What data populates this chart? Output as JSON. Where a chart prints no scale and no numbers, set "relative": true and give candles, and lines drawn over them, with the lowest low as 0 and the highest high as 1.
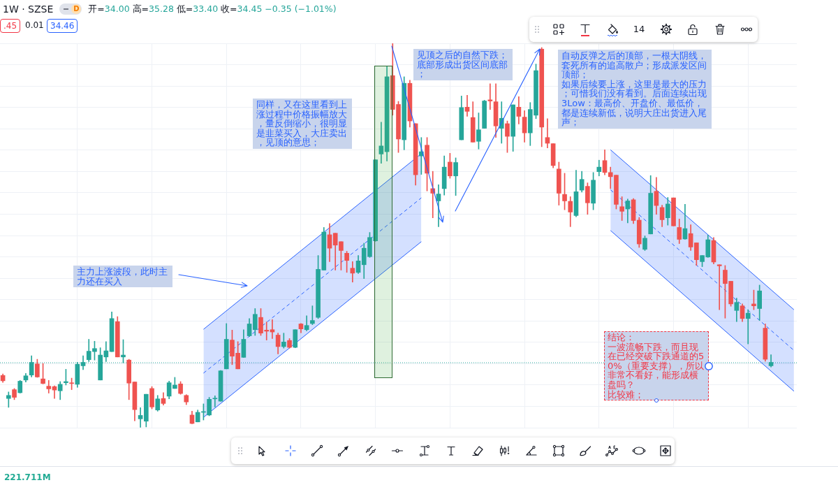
{
  "chart_data": {
    "type": "candlestick",
    "title": "1W · SZSE",
    "relative": true,
    "tick_labels": false,
    "grid": true,
    "annotations": [
      "开=34.00 高=35.28 低=33.40 收=34.45 −0.35 (−1.01%)",
      "D",
      ".45",
      "0.01",
      "34.46",
      "14",
      "221.711M",
      "主力上涨波段，此时主力还在买入",
      "同样，又在这里看到上涨过程中价格振幅放大，量反倒缩小，很明显是韭菜买入，大庄卖出，见顶的意思；",
      "见顶之后的自然下跌；底部形成出货区间底部；",
      "自动反弹之后的顶部，一根大阴线，套死所有的追高散户；形成派发区间顶部；",
      "如果后续要上涨，这里是最大的压力；可惜我们没有看到。后面连续出现3Low：最高价、开盘价、最低价，",
      "都是连续新低，说明大庄出货进入尾声；",
      "结论：",
      "一波流畅下跌，而且现在已经突破下跌通道的50%（重要支撑），所以非常不看好，能形成横盘吗？",
      "比较难；"
    ],
    "categories": [
      null,
      null,
      null,
      null,
      null,
      null,
      null,
      null,
      null,
      null,
      null,
      null,
      null,
      null,
      null,
      null,
      null,
      null,
      null,
      null,
      null,
      null,
      null,
      null,
      null,
      null,
      null,
      null,
      null,
      null,
      null,
      null,
      null,
      null,
      null,
      null,
      null,
      null,
      null,
      null,
      null,
      null,
      null,
      null,
      null,
      null,
      null,
      null,
      null,
      null,
      null,
      null,
      null,
      null,
      null,
      null,
      null,
      null,
      null,
      null,
      null,
      null,
      null,
      null,
      null,
      null,
      null,
      null,
      null,
      null,
      null,
      null,
      null,
      null,
      null,
      null,
      null,
      null,
      null,
      null,
      null,
      null,
      null,
      null,
      null,
      null,
      null,
      null,
      null,
      null,
      null,
      null,
      null,
      null,
      null,
      null,
      null,
      null,
      null,
      null,
      null,
      null,
      null,
      null,
      null,
      null,
      null,
      null,
      null,
      null,
      null,
      null,
      null,
      null,
      null,
      null,
      null,
      null,
      null,
      null,
      null,
      null,
      null,
      null,
      null,
      null,
      null,
      null,
      null,
      null,
      null,
      null,
      null,
      null,
      null,
      null,
      null,
      null,
      null
    ],
    "ohlc": [
      [
        0.136,
        0.14,
        0.118,
        0.122
      ],
      [
        0.076,
        0.093,
        0.053,
        0.084
      ],
      [
        0.099,
        0.102,
        0.073,
        0.079
      ],
      [
        0.091,
        0.123,
        0.09,
        0.121
      ],
      [
        0.124,
        0.141,
        0.119,
        0.135
      ],
      [
        0.137,
        0.187,
        0.132,
        0.17
      ],
      [
        0.166,
        0.178,
        0.131,
        0.132
      ],
      [
        0.127,
        0.167,
        0.114,
        0.115
      ],
      [
        0.108,
        0.123,
        0.09,
        0.101
      ],
      [
        0.107,
        0.109,
        0.076,
        0.098
      ],
      [
        0.096,
        0.12,
        0.073,
        0.113
      ],
      [
        0.117,
        0.152,
        0.111,
        0.12
      ],
      [
        0.116,
        0.129,
        0.099,
        0.115
      ],
      [
        0.113,
        0.17,
        0.105,
        0.165
      ],
      [
        0.161,
        0.187,
        0.151,
        0.17
      ],
      [
        0.177,
        0.23,
        0.172,
        0.199
      ],
      [
        0.198,
        0.225,
        0.176,
        0.206
      ],
      [
        0.124,
        0.208,
        0.124,
        0.189
      ],
      [
        0.184,
        0.224,
        0.172,
        0.2
      ],
      [
        0.198,
        0.301,
        0.198,
        0.284
      ],
      [
        0.276,
        0.289,
        0.184,
        0.184
      ],
      [
        0.184,
        0.229,
        0.169,
        0.189
      ],
      [
        0.176,
        0.178,
        0.073,
        0.116
      ],
      [
        0.119,
        0.119,
        0.018,
        0.047
      ],
      [
        0.023,
        0.052,
        0,
        0.032
      ],
      [
        0.017,
        0.087,
        0.002,
        0.087
      ],
      [
        0.102,
        0.107,
        0.049,
        0.054
      ],
      [
        0.046,
        0.084,
        0.043,
        0.075
      ],
      [
        0.076,
        0.091,
        0.059,
        0.063
      ],
      [
        0.082,
        0.121,
        0.075,
        0.117
      ],
      [
        0.102,
        0.131,
        0.102,
        0.111
      ],
      [
        0.114,
        0.12,
        0.087,
        0.089
      ],
      [
        0.084,
        0.086,
        0.06,
        0.067
      ],
      [
        0.033,
        0.043,
        0.01,
        0.011
      ],
      [
        0.015,
        0.046,
        0.015,
        0.04
      ],
      [
        0.04,
        0.062,
        0.02,
        0.042
      ],
      [
        0.033,
        0.079,
        0.031,
        0.074
      ],
      [
        0.075,
        0.083,
        0.054,
        0.076
      ],
      [
        0.069,
        0.149,
        0.069,
        0.148
      ],
      [
        0.153,
        0.271,
        0.153,
        0.23
      ],
      [
        0.228,
        0.254,
        0.164,
        0.186
      ],
      [
        0.194,
        0.224,
        0.153,
        0.153
      ],
      [
        0.183,
        0.255,
        0.183,
        0.23
      ],
      [
        0.239,
        0.284,
        0.237,
        0.27
      ],
      [
        0.255,
        0.31,
        0.24,
        0.295
      ],
      [
        0.287,
        0.31,
        0.24,
        0.246
      ],
      [
        0.254,
        0.275,
        0.228,
        0.251
      ],
      [
        0.255,
        0.281,
        0.232,
        0.249
      ],
      [
        0.241,
        0.246,
        0.192,
        0.211
      ],
      [
        0.211,
        0.246,
        0.207,
        0.223
      ],
      [
        0.227,
        0.232,
        0.207,
        0.209
      ],
      [
        0.209,
        0.255,
        0.208,
        0.255
      ],
      [
        0.27,
        0.271,
        0.247,
        0.257
      ],
      [
        0.255,
        0.291,
        0.252,
        0.266
      ],
      [
        0.271,
        0.317,
        0.268,
        0.279
      ],
      [
        0.287,
        0.448,
        0.284,
        0.412
      ],
      [
        0.41,
        0.521,
        0.41,
        0.509
      ],
      [
        0.502,
        0.531,
        0.432,
        0.467
      ],
      [
        0.506,
        0.506,
        0.41,
        0.475
      ],
      [
        0.484,
        0.484,
        0.41,
        0.461
      ],
      [
        0.454,
        0.459,
        0.404,
        0.435
      ],
      [
        0.415,
        0.432,
        0.379,
        0.402
      ],
      [
        0.404,
        0.448,
        0.401,
        0.434
      ],
      [
        0.424,
        0.48,
        0.388,
        0.467
      ],
      [
        0.445,
        0.508,
        0.443,
        0.495
      ],
      [
        0.486,
        0.697,
        0.485,
        0.697
      ],
      [
        0.712,
        0.795,
        0.688,
        0.733
      ],
      [
        0.718,
        0.941,
        0.694,
        0.913
      ],
      [
        0.916,
        1,
        0.813,
        0.828
      ],
      [
        0.841,
        0.849,
        0.716,
        0.751
      ],
      [
        0.749,
        0.913,
        0.723,
        0.896
      ],
      [
        0.896,
        0.904,
        0.782,
        0.798
      ],
      [
        0.791,
        0.791,
        0.631,
        0.658
      ],
      [
        0.707,
        0.755,
        0.659,
        0.718
      ],
      [
        0.735,
        0.755,
        0.616,
        0.662
      ],
      [
        0.622,
        0.667,
        0.546,
        0.61
      ],
      [
        0.59,
        0.632,
        0.523,
        0.608
      ],
      [
        0.622,
        0.707,
        0.605,
        0.678
      ],
      [
        0.691,
        0.714,
        0.649,
        0.655
      ],
      [
        0.655,
        0.702,
        0.604,
        0.69
      ],
      [
        0.749,
        0.863,
        0.749,
        0.833
      ],
      [
        0.834,
        0.865,
        0.81,
        0.823
      ],
      [
        0.807,
        0.848,
        0.743,
        0.743
      ],
      [
        0.745,
        0.819,
        0.725,
        0.775
      ],
      [
        0.779,
        0.852,
        0.779,
        0.85
      ],
      [
        0.853,
        0.895,
        0.828,
        0.85
      ],
      [
        0.848,
        0.895,
        0.755,
        0.785
      ],
      [
        0.779,
        0.848,
        0.74,
        0.805
      ],
      [
        0.791,
        0.798,
        0.716,
        0.758
      ],
      [
        0.758,
        0.84,
        0.719,
        0.84
      ],
      [
        0.834,
        0.861,
        0.79,
        0.81
      ],
      [
        0.808,
        0.825,
        0.743,
        0.767
      ],
      [
        0.767,
        0.846,
        0.734,
        0.828
      ],
      [
        0.813,
        0.946,
        0.804,
        0.929
      ],
      [
        0.985,
        0.989,
        0.731,
        0.782
      ],
      [
        0.755,
        0.804,
        0.728,
        0.74
      ],
      [
        0.739,
        0.739,
        0.676,
        0.682
      ],
      [
        0.673,
        0.691,
        0.579,
        0.61
      ],
      [
        0.607,
        0.662,
        0.567,
        0.59
      ],
      [
        0.589,
        0.601,
        0.523,
        0.561
      ],
      [
        0.552,
        0.67,
        0.549,
        0.614
      ],
      [
        0.618,
        0.667,
        0.613,
        0.646
      ],
      [
        0.628,
        0.637,
        0.555,
        0.585
      ],
      [
        0.584,
        0.664,
        0.567,
        0.644
      ],
      [
        0.666,
        0.696,
        0.655,
        0.678
      ],
      [
        0.695,
        0.723,
        0.658,
        0.664
      ],
      [
        0.664,
        0.678,
        0.622,
        0.653
      ],
      [
        0.657,
        0.657,
        0.569,
        0.581
      ],
      [
        0.575,
        0.601,
        0.539,
        0.563
      ],
      [
        0.569,
        0.595,
        0.533,
        0.59
      ],
      [
        0.593,
        0.596,
        0.531,
        0.539
      ],
      [
        0.54,
        0.547,
        0.469,
        0.478
      ],
      [
        0.464,
        0.499,
        0.461,
        0.493
      ],
      [
        0.504,
        0.656,
        0.504,
        0.61
      ],
      [
        0.615,
        0.651,
        0.555,
        0.578
      ],
      [
        0.573,
        0.579,
        0.523,
        0.541
      ],
      [
        0.546,
        0.599,
        0.527,
        0.582
      ],
      [
        0.598,
        0.598,
        0.525,
        0.525
      ],
      [
        0.521,
        0.543,
        0.479,
        0.49
      ],
      [
        0.491,
        0.581,
        0.49,
        0.518
      ],
      [
        0.505,
        0.528,
        0.461,
        0.47
      ],
      [
        0.481,
        0.481,
        0.422,
        0.437
      ],
      [
        0.432,
        0.448,
        0.419,
        0.448
      ],
      [
        0.444,
        0.501,
        0.443,
        0.489
      ],
      [
        0.487,
        0.495,
        0.426,
        0.431
      ],
      [
        0.424,
        0.424,
        0.307,
        0.421
      ],
      [
        0.41,
        0.422,
        0.285,
        0.375
      ],
      [
        0.381,
        0.381,
        0.316,
        0.322
      ],
      [
        0.305,
        0.337,
        0.276,
        0.326
      ],
      [
        0.317,
        0.322,
        0.276,
        0.284
      ],
      [
        0.284,
        0.307,
        0.218,
        0.298
      ],
      [
        0.322,
        0.358,
        0.307,
        0.317
      ],
      [
        0.31,
        0.371,
        0.279,
        0.356
      ],
      [
        0.259,
        0.27,
        0.173,
        0.178
      ],
      [
        0.161,
        0.19,
        0.158,
        0.17
      ],
      null,
      null,
      null,
      null
    ],
    "colors": [
      "#ef5350",
      "#26a69a",
      "#ef5350",
      "#26a69a",
      "#26a69a",
      "#26a69a",
      "#ef5350",
      "#ef5350",
      "#ef5350",
      "#ef5350",
      "#26a69a",
      "#26a69a",
      "#ef5350",
      "#26a69a",
      "#26a69a",
      "#26a69a",
      "#26a69a",
      "#26a69a",
      "#26a69a",
      "#26a69a",
      "#ef5350",
      "#26a69a",
      "#ef5350",
      "#ef5350",
      "#26a69a",
      "#26a69a",
      "#ef5350",
      "#26a69a",
      "#ef5350",
      "#26a69a",
      "#26a69a",
      "#ef5350",
      "#ef5350",
      "#ef5350",
      "#26a69a",
      "#26a69a",
      "#26a69a",
      "#26a69a",
      "#26a69a",
      "#26a69a",
      "#ef5350",
      "#ef5350",
      "#26a69a",
      "#26a69a",
      "#26a69a",
      "#ef5350",
      "#ef5350",
      "#ef5350",
      "#ef5350",
      "#26a69a",
      "#ef5350",
      "#26a69a",
      "#ef5350",
      "#26a69a",
      "#26a69a",
      "#26a69a",
      "#26a69a",
      "#ef5350",
      "#ef5350",
      "#ef5350",
      "#ef5350",
      "#ef5350",
      "#26a69a",
      "#26a69a",
      "#26a69a",
      "#26a69a",
      "#26a69a",
      "#26a69a",
      "#ef5350",
      "#ef5350",
      "#26a69a",
      "#ef5350",
      "#ef5350",
      "#26a69a",
      "#ef5350",
      "#ef5350",
      "#26a69a",
      "#26a69a",
      "#ef5350",
      "#26a69a",
      "#26a69a",
      "#ef5350",
      "#ef5350",
      "#26a69a",
      "#26a69a",
      "#ef5350",
      "#ef5350",
      "#26a69a",
      "#ef5350",
      "#26a69a",
      "#ef5350",
      "#ef5350",
      "#26a69a",
      "#26a69a",
      "#ef5350",
      "#ef5350",
      "#ef5350",
      "#ef5350",
      "#ef5350",
      "#ef5350",
      "#26a69a",
      "#26a69a",
      "#ef5350",
      "#26a69a",
      "#26a69a",
      "#ef5350",
      "#ef5350",
      "#ef5350",
      "#ef5350",
      "#26a69a",
      "#ef5350",
      "#ef5350",
      "#26a69a",
      "#26a69a",
      "#ef5350",
      "#ef5350",
      "#26a69a",
      "#ef5350",
      "#ef5350",
      "#26a69a",
      "#ef5350",
      "#ef5350",
      "#26a69a",
      "#26a69a",
      "#ef5350",
      "#ef5350",
      "#ef5350",
      "#ef5350",
      "#26a69a",
      "#ef5350",
      "#26a69a",
      "#ef5350",
      "#26a69a",
      "#ef5350",
      "#26a69a",
      null,
      null,
      null,
      null
    ],
    "ref_lines": [
      {
        "axis": "y",
        "value": 0.17,
        "color": "#26a69a",
        "line_style": "dotted"
      }
    ],
    "series": [
      {
        "type": "line",
        "color": "#2962ff",
        "values": [
          null,
          null,
          null,
          null,
          null,
          null,
          null,
          null,
          null,
          null,
          null,
          null,
          null,
          null,
          null,
          null,
          null,
          null,
          null,
          null,
          null,
          null,
          null,
          null,
          null,
          null,
          null,
          null,
          null,
          null,
          null,
          null,
          null,
          null,
          null,
          0.256,
          null,
          null,
          null,
          null,
          null,
          null,
          null,
          null,
          null,
          null,
          null,
          null,
          null,
          null,
          null,
          null,
          null,
          null,
          null,
          null,
          null,
          null,
          null,
          null,
          null,
          null,
          null,
          null,
          null,
          null,
          null,
          null,
          null,
          null,
          null,
          null,
          null,
          0.713,
          null,
          null,
          null,
          null,
          null,
          null,
          null,
          null,
          null,
          null,
          null,
          null,
          null,
          null,
          null,
          null,
          null,
          null,
          null,
          null,
          null,
          null,
          null,
          null,
          null,
          null,
          null,
          null,
          null,
          null,
          null,
          null,
          null,
          null,
          null,
          null,
          null,
          null,
          null,
          null,
          null,
          null,
          null,
          null,
          null,
          null,
          null,
          null,
          null,
          null,
          null,
          null,
          null,
          null,
          null,
          null,
          null,
          null,
          null,
          null,
          null,
          null,
          null,
          null,
          null
        ]
      },
      {
        "type": "line",
        "color": "#2962ff",
        "values": [
          null,
          null,
          null,
          null,
          null,
          null,
          null,
          null,
          null,
          null,
          null,
          null,
          null,
          null,
          null,
          null,
          null,
          null,
          null,
          null,
          null,
          null,
          null,
          null,
          null,
          null,
          null,
          null,
          null,
          null,
          null,
          null,
          null,
          null,
          null,
          0.027,
          null,
          null,
          null,
          null,
          null,
          null,
          null,
          null,
          null,
          null,
          null,
          null,
          null,
          null,
          null,
          null,
          null,
          null,
          null,
          null,
          null,
          null,
          null,
          null,
          null,
          null,
          null,
          null,
          null,
          null,
          null,
          null,
          null,
          null,
          null,
          null,
          null,
          0.484,
          null,
          null,
          null,
          null,
          null,
          null,
          null,
          null,
          null,
          null,
          null,
          null,
          null,
          null,
          null,
          null,
          null,
          null,
          null,
          null,
          null,
          null,
          null,
          null,
          null,
          null,
          null,
          null,
          null,
          null,
          null,
          null,
          null,
          null,
          null,
          null,
          null,
          null,
          null,
          null,
          null,
          null,
          null,
          null,
          null,
          null,
          null,
          null,
          null,
          null,
          null,
          null,
          null,
          null,
          null,
          null,
          null,
          null,
          null,
          null,
          null,
          null,
          null,
          null,
          null
        ]
      },
      {
        "type": "line",
        "color": "#2962ff",
        "line_style": "dashed",
        "values": [
          null,
          null,
          null,
          null,
          null,
          null,
          null,
          null,
          null,
          null,
          null,
          null,
          null,
          null,
          null,
          null,
          null,
          null,
          null,
          null,
          null,
          null,
          null,
          null,
          null,
          null,
          null,
          null,
          null,
          null,
          null,
          null,
          null,
          null,
          null,
          0.142,
          null,
          null,
          null,
          null,
          null,
          null,
          null,
          null,
          null,
          null,
          null,
          null,
          null,
          null,
          null,
          null,
          null,
          null,
          null,
          null,
          null,
          null,
          null,
          null,
          null,
          null,
          null,
          null,
          null,
          null,
          null,
          null,
          null,
          null,
          null,
          null,
          null,
          0.598,
          null,
          null,
          null,
          null,
          null,
          null,
          null,
          null,
          null,
          null,
          null,
          null,
          null,
          null,
          null,
          null,
          null,
          null,
          null,
          null,
          null,
          null,
          null,
          null,
          null,
          null,
          null,
          null,
          null,
          null,
          null,
          null,
          null,
          null,
          null,
          null,
          null,
          null,
          null,
          null,
          null,
          null,
          null,
          null,
          null,
          null,
          null,
          null,
          null,
          null,
          null,
          null,
          null,
          null,
          null,
          null,
          null,
          null,
          null,
          null,
          null,
          null,
          null,
          null,
          null
        ],
        "lower": [
          null,
          null,
          null,
          null,
          null,
          null,
          null,
          null,
          null,
          null,
          null,
          null,
          null,
          null,
          null,
          null,
          null,
          null,
          null,
          null,
          null,
          null,
          null,
          null,
          null,
          null,
          null,
          null,
          null,
          null,
          null,
          null,
          null,
          null,
          null,
          0.027,
          null,
          null,
          null,
          null,
          null,
          null,
          null,
          null,
          null,
          null,
          null,
          null,
          null,
          null,
          null,
          null,
          null,
          null,
          null,
          null,
          null,
          null,
          null,
          null,
          null,
          null,
          null,
          null,
          null,
          null,
          null,
          null,
          null,
          null,
          null,
          null,
          null,
          0.484,
          null,
          null,
          null,
          null,
          null,
          null,
          null,
          null,
          null,
          null,
          null,
          null,
          null,
          null,
          null,
          null,
          null,
          null,
          null,
          null,
          null,
          null,
          null,
          null,
          null,
          null,
          null,
          null,
          null,
          null,
          null,
          null,
          null,
          null,
          null,
          null,
          null,
          null,
          null,
          null,
          null,
          null,
          null,
          null,
          null,
          null,
          null,
          null,
          null,
          null,
          null,
          null,
          null,
          null,
          null,
          null,
          null,
          null,
          null,
          null,
          null,
          null,
          null,
          null,
          null
        ],
        "upper": [
          null,
          null,
          null,
          null,
          null,
          null,
          null,
          null,
          null,
          null,
          null,
          null,
          null,
          null,
          null,
          null,
          null,
          null,
          null,
          null,
          null,
          null,
          null,
          null,
          null,
          null,
          null,
          null,
          null,
          null,
          null,
          null,
          null,
          null,
          null,
          0.256,
          null,
          null,
          null,
          null,
          null,
          null,
          null,
          null,
          null,
          null,
          null,
          null,
          null,
          null,
          null,
          null,
          null,
          null,
          null,
          null,
          null,
          null,
          null,
          null,
          null,
          null,
          null,
          null,
          null,
          null,
          null,
          null,
          null,
          null,
          null,
          null,
          null,
          0.713,
          null,
          null,
          null,
          null,
          null,
          null,
          null,
          null,
          null,
          null,
          null,
          null,
          null,
          null,
          null,
          null,
          null,
          null,
          null,
          null,
          null,
          null,
          null,
          null,
          null,
          null,
          null,
          null,
          null,
          null,
          null,
          null,
          null,
          null,
          null,
          null,
          null,
          null,
          null,
          null,
          null,
          null,
          null,
          null,
          null,
          null,
          null,
          null,
          null,
          null,
          null,
          null,
          null,
          null,
          null,
          null,
          null,
          null,
          null,
          null,
          null,
          null,
          null,
          null,
          null
        ]
      },
      {
        "type": "line",
        "color": "#2962ff",
        "values": [
          null,
          null,
          null,
          null,
          null,
          null,
          null,
          null,
          null,
          null,
          null,
          null,
          null,
          null,
          null,
          null,
          null,
          null,
          null,
          null,
          null,
          null,
          null,
          null,
          null,
          null,
          null,
          null,
          null,
          null,
          null,
          null,
          null,
          null,
          null,
          null,
          null,
          null,
          null,
          null,
          null,
          null,
          null,
          null,
          null,
          null,
          null,
          null,
          null,
          null,
          null,
          null,
          null,
          null,
          null,
          null,
          null,
          null,
          null,
          null,
          null,
          null,
          null,
          null,
          null,
          null,
          null,
          null,
          null,
          null,
          null,
          null,
          null,
          null,
          null,
          null,
          null,
          null,
          null,
          null,
          null,
          null,
          null,
          null,
          null,
          null,
          null,
          null,
          null,
          null,
          null,
          null,
          null,
          null,
          null,
          null,
          null,
          null,
          null,
          null,
          null,
          null,
          null,
          null,
          null,
          null,
          0.723,
          null,
          null,
          null,
          null,
          null,
          null,
          null,
          null,
          null,
          null,
          null,
          null,
          null,
          null,
          null,
          null,
          null,
          null,
          null,
          null,
          null,
          null,
          null,
          null,
          null,
          null,
          null,
          null,
          null,
          null,
          null,
          0.307
        ]
      },
      {
        "type": "line",
        "color": "#2962ff",
        "values": [
          null,
          null,
          null,
          null,
          null,
          null,
          null,
          null,
          null,
          null,
          null,
          null,
          null,
          null,
          null,
          null,
          null,
          null,
          null,
          null,
          null,
          null,
          null,
          null,
          null,
          null,
          null,
          null,
          null,
          null,
          null,
          null,
          null,
          null,
          null,
          null,
          null,
          null,
          null,
          null,
          null,
          null,
          null,
          null,
          null,
          null,
          null,
          null,
          null,
          null,
          null,
          null,
          null,
          null,
          null,
          null,
          null,
          null,
          null,
          null,
          null,
          null,
          null,
          null,
          null,
          null,
          null,
          null,
          null,
          null,
          null,
          null,
          null,
          null,
          null,
          null,
          null,
          null,
          null,
          null,
          null,
          null,
          null,
          null,
          null,
          null,
          null,
          null,
          null,
          null,
          null,
          null,
          null,
          null,
          null,
          null,
          null,
          null,
          null,
          null,
          null,
          null,
          null,
          null,
          null,
          null,
          0.513,
          null,
          null,
          null,
          null,
          null,
          null,
          null,
          null,
          null,
          null,
          null,
          null,
          null,
          null,
          null,
          null,
          null,
          null,
          null,
          null,
          null,
          null,
          null,
          null,
          null,
          null,
          null,
          null,
          null,
          null,
          null,
          0.095
        ]
      },
      {
        "type": "line",
        "color": "#2962ff",
        "line_style": "dashed",
        "values": [
          null,
          null,
          null,
          null,
          null,
          null,
          null,
          null,
          null,
          null,
          null,
          null,
          null,
          null,
          null,
          null,
          null,
          null,
          null,
          null,
          null,
          null,
          null,
          null,
          null,
          null,
          null,
          null,
          null,
          null,
          null,
          null,
          null,
          null,
          null,
          null,
          null,
          null,
          null,
          null,
          null,
          null,
          null,
          null,
          null,
          null,
          null,
          null,
          null,
          null,
          null,
          null,
          null,
          null,
          null,
          null,
          null,
          null,
          null,
          null,
          null,
          null,
          null,
          null,
          null,
          null,
          null,
          null,
          null,
          null,
          null,
          null,
          null,
          null,
          null,
          null,
          null,
          null,
          null,
          null,
          null,
          null,
          null,
          null,
          null,
          null,
          null,
          null,
          null,
          null,
          null,
          null,
          null,
          null,
          null,
          null,
          null,
          null,
          null,
          null,
          null,
          null,
          null,
          null,
          null,
          null,
          0.619,
          null,
          null,
          null,
          null,
          null,
          null,
          null,
          null,
          null,
          null,
          null,
          null,
          null,
          null,
          null,
          null,
          null,
          null,
          null,
          null,
          null,
          null,
          null,
          null,
          null,
          null,
          null,
          null,
          null,
          null,
          null,
          0.201
        ],
        "lower": [
          null,
          null,
          null,
          null,
          null,
          null,
          null,
          null,
          null,
          null,
          null,
          null,
          null,
          null,
          null,
          null,
          null,
          null,
          null,
          null,
          null,
          null,
          null,
          null,
          null,
          null,
          null,
          null,
          null,
          null,
          null,
          null,
          null,
          null,
          null,
          null,
          null,
          null,
          null,
          null,
          null,
          null,
          null,
          null,
          null,
          null,
          null,
          null,
          null,
          null,
          null,
          null,
          null,
          null,
          null,
          null,
          null,
          null,
          null,
          null,
          null,
          null,
          null,
          null,
          null,
          null,
          null,
          null,
          null,
          null,
          null,
          null,
          null,
          null,
          null,
          null,
          null,
          null,
          null,
          null,
          null,
          null,
          null,
          null,
          null,
          null,
          null,
          null,
          null,
          null,
          null,
          null,
          null,
          null,
          null,
          null,
          null,
          null,
          null,
          null,
          null,
          null,
          null,
          null,
          null,
          null,
          0.513,
          null,
          null,
          null,
          null,
          null,
          null,
          null,
          null,
          null,
          null,
          null,
          null,
          null,
          null,
          null,
          null,
          null,
          null,
          null,
          null,
          null,
          null,
          null,
          null,
          null,
          null,
          null,
          null,
          null,
          null,
          null,
          0.095
        ],
        "upper": [
          null,
          null,
          null,
          null,
          null,
          null,
          null,
          null,
          null,
          null,
          null,
          null,
          null,
          null,
          null,
          null,
          null,
          null,
          null,
          null,
          null,
          null,
          null,
          null,
          null,
          null,
          null,
          null,
          null,
          null,
          null,
          null,
          null,
          null,
          null,
          null,
          null,
          null,
          null,
          null,
          null,
          null,
          null,
          null,
          null,
          null,
          null,
          null,
          null,
          null,
          null,
          null,
          null,
          null,
          null,
          null,
          null,
          null,
          null,
          null,
          null,
          null,
          null,
          null,
          null,
          null,
          null,
          null,
          null,
          null,
          null,
          null,
          null,
          null,
          null,
          null,
          null,
          null,
          null,
          null,
          null,
          null,
          null,
          null,
          null,
          null,
          null,
          null,
          null,
          null,
          null,
          null,
          null,
          null,
          null,
          null,
          null,
          null,
          null,
          null,
          null,
          null,
          null,
          null,
          null,
          null,
          0.723,
          null,
          null,
          null,
          null,
          null,
          null,
          null,
          null,
          null,
          null,
          null,
          null,
          null,
          null,
          null,
          null,
          null,
          null,
          null,
          null,
          null,
          null,
          null,
          null,
          null,
          null,
          null,
          null,
          null,
          null,
          null,
          0.307
        ]
      }
    ]
  }
}
